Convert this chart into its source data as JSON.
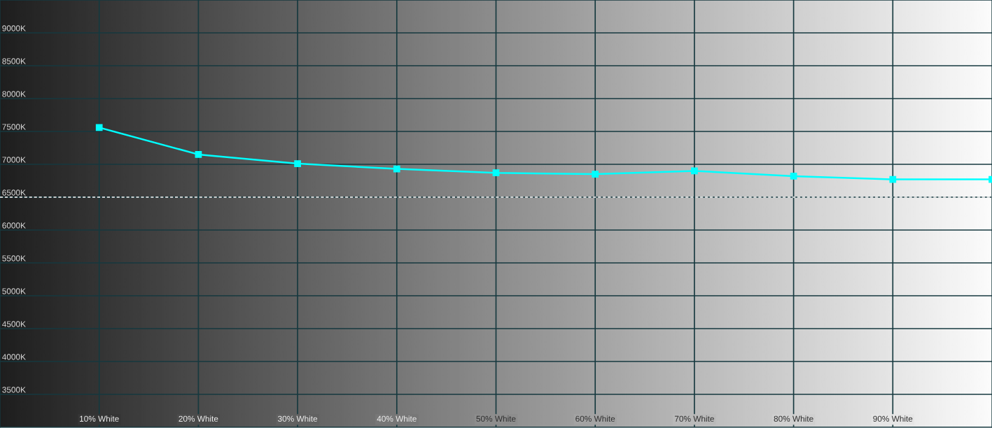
{
  "chart_data": {
    "type": "line",
    "x": [
      10,
      20,
      30,
      40,
      50,
      60,
      70,
      80,
      90,
      100
    ],
    "xlim": [
      0,
      100
    ],
    "xticks": [
      {
        "value": 10,
        "label": "10% White"
      },
      {
        "value": 20,
        "label": "20% White"
      },
      {
        "value": 30,
        "label": "30% White"
      },
      {
        "value": 40,
        "label": "40% White"
      },
      {
        "value": 50,
        "label": "50% White"
      },
      {
        "value": 60,
        "label": "60% White"
      },
      {
        "value": 70,
        "label": "70% White"
      },
      {
        "value": 80,
        "label": "80% White"
      },
      {
        "value": 90,
        "label": "90% White"
      }
    ],
    "ylim": [
      3000,
      9500
    ],
    "yticks": [
      {
        "value": 3500,
        "label": "3500K"
      },
      {
        "value": 4000,
        "label": "4000K"
      },
      {
        "value": 4500,
        "label": "4500K"
      },
      {
        "value": 5000,
        "label": "5000K"
      },
      {
        "value": 5500,
        "label": "5500K"
      },
      {
        "value": 6000,
        "label": "6000K"
      },
      {
        "value": 6500,
        "label": "6500K"
      },
      {
        "value": 7000,
        "label": "7000K"
      },
      {
        "value": 7500,
        "label": "7500K"
      },
      {
        "value": 8000,
        "label": "8000K"
      },
      {
        "value": 8500,
        "label": "8500K"
      },
      {
        "value": 9000,
        "label": "9000K"
      }
    ],
    "series": [
      {
        "color": "#00ffff",
        "values": [
          7560,
          7150,
          7010,
          6930,
          6870,
          6850,
          6900,
          6820,
          6770,
          6770
        ]
      }
    ],
    "marker": "square",
    "line_style": "solid",
    "grid": true,
    "ref_lines": [
      {
        "axis": "y",
        "value": 6500,
        "color": "#ffffff",
        "line_style": "dashed"
      }
    ]
  }
}
